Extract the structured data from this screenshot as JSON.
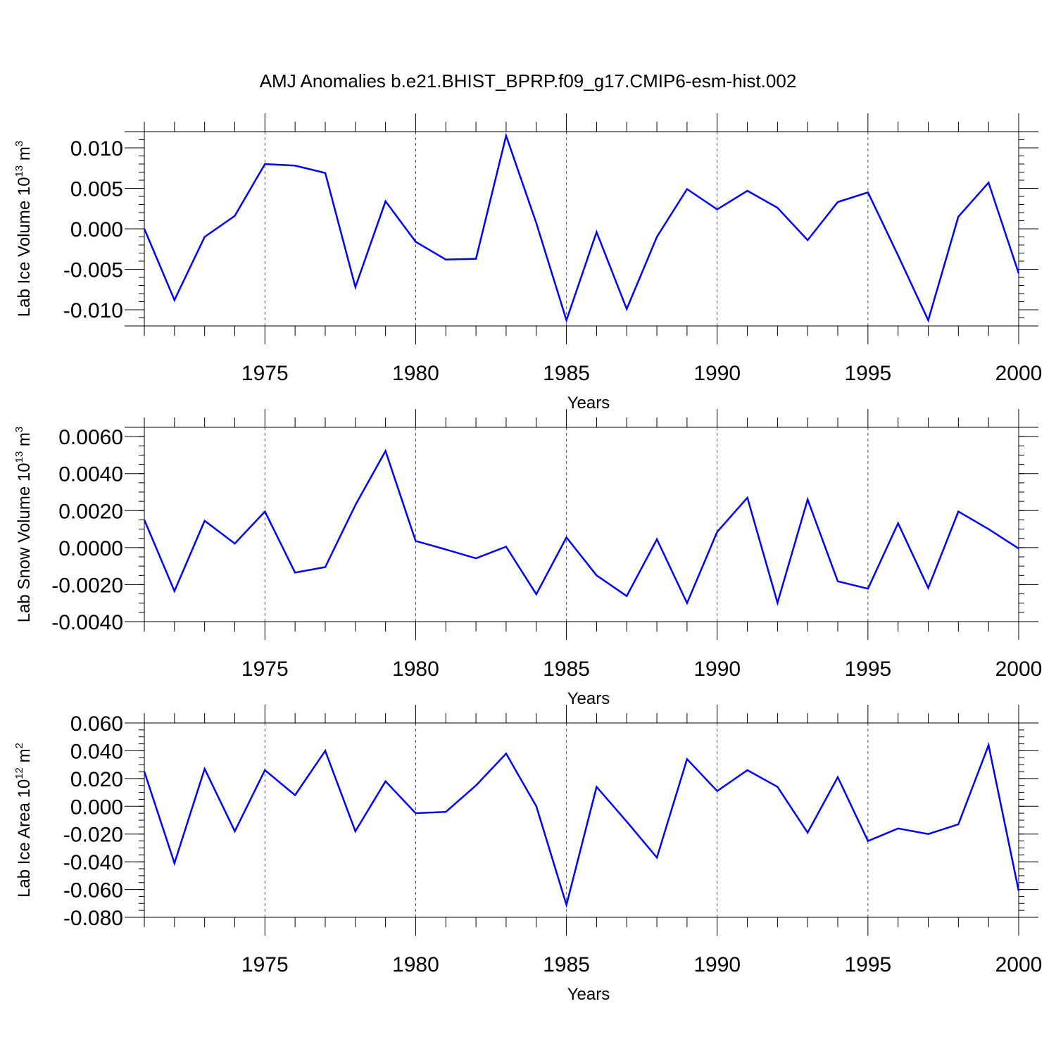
{
  "title": "AMJ Anomalies b.e21.BHIST_BPRP.f09_g17.CMIP6-esm-hist.002",
  "line_color": "#0000ff",
  "chart_data": [
    {
      "type": "line",
      "title": "AMJ Anomalies b.e21.BHIST_BPRP.f09_g17.CMIP6-esm-hist.002",
      "xlabel": "Years",
      "ylabel_main": "Lab Ice Volume 10",
      "ylabel_exp": "13",
      "ylabel_unit": " m",
      "ylabel_pow": "3",
      "xlim": [
        1971,
        2000
      ],
      "ylim": [
        -0.012,
        0.012
      ],
      "y_ticks": [
        -0.01,
        -0.005,
        0.0,
        0.005,
        0.01
      ],
      "y_tick_labels": [
        "-0.010",
        "-0.005",
        "0.000",
        "0.005",
        "0.010"
      ],
      "y_minor_step": 0.001,
      "x_ticks": [
        1975,
        1980,
        1985,
        1990,
        1995,
        2000
      ],
      "x_tick_labels": [
        "1975",
        "1980",
        "1985",
        "1990",
        "1995",
        "2000"
      ],
      "x": [
        1971,
        1972,
        1973,
        1974,
        1975,
        1976,
        1977,
        1978,
        1979,
        1980,
        1981,
        1982,
        1983,
        1984,
        1985,
        1986,
        1987,
        1988,
        1989,
        1990,
        1991,
        1992,
        1993,
        1994,
        1995,
        1996,
        1997,
        1998,
        1999,
        2000
      ],
      "series": [
        {
          "name": "Lab Ice Volume",
          "values": [
            0.0,
            -0.0088,
            -0.001,
            0.0016,
            0.008,
            0.0078,
            0.0069,
            -0.0072,
            0.0034,
            -0.0016,
            -0.0038,
            -0.0037,
            0.0115,
            0.0007,
            -0.0113,
            -0.0004,
            -0.0099,
            -0.001,
            0.0049,
            0.0024,
            0.0047,
            0.0026,
            -0.0014,
            0.0033,
            0.0045,
            -0.0033,
            -0.0113,
            0.0015,
            0.0057,
            -0.0055
          ]
        }
      ]
    },
    {
      "type": "line",
      "xlabel": "Years",
      "ylabel_main": "Lab Snow Volume 10",
      "ylabel_exp": "13",
      "ylabel_unit": " m",
      "ylabel_pow": "3",
      "xlim": [
        1971,
        2000
      ],
      "ylim": [
        -0.004,
        0.0065
      ],
      "y_ticks": [
        -0.004,
        -0.002,
        0.0,
        0.002,
        0.004,
        0.006
      ],
      "y_tick_labels": [
        "-0.0040",
        "-0.0020",
        "0.0000",
        "0.0020",
        "0.0040",
        "0.0060"
      ],
      "y_minor_step": 0.0005,
      "x_ticks": [
        1975,
        1980,
        1985,
        1990,
        1995,
        2000
      ],
      "x_tick_labels": [
        "1975",
        "1980",
        "1985",
        "1990",
        "1995",
        "2000"
      ],
      "x": [
        1971,
        1972,
        1973,
        1974,
        1975,
        1976,
        1977,
        1978,
        1979,
        1980,
        1981,
        1982,
        1983,
        1984,
        1985,
        1986,
        1987,
        1988,
        1989,
        1990,
        1991,
        1992,
        1993,
        1994,
        1995,
        1996,
        1997,
        1998,
        1999,
        2000
      ],
      "series": [
        {
          "name": "Lab Snow Volume",
          "values": [
            0.0015,
            -0.00235,
            0.00145,
            0.00022,
            0.00195,
            -0.00135,
            -0.00105,
            0.0023,
            0.00522,
            0.00036,
            -0.0001,
            -0.00058,
            5e-05,
            -0.00252,
            0.00055,
            -0.0015,
            -0.00262,
            0.00045,
            -0.003,
            0.00085,
            0.0027,
            -0.00298,
            0.0026,
            -0.00182,
            -0.00222,
            0.00132,
            -0.00218,
            0.00195,
            0.001,
            -5e-05
          ]
        }
      ]
    },
    {
      "type": "line",
      "xlabel": "Years",
      "ylabel_main": "Lab Ice Area 10",
      "ylabel_exp": "12",
      "ylabel_unit": " m",
      "ylabel_pow": "2",
      "xlim": [
        1971,
        2000
      ],
      "ylim": [
        -0.08,
        0.06
      ],
      "y_ticks": [
        -0.08,
        -0.06,
        -0.04,
        -0.02,
        0.0,
        0.02,
        0.04,
        0.06
      ],
      "y_tick_labels": [
        "-0.080",
        "-0.060",
        "-0.040",
        "-0.020",
        "0.000",
        "0.020",
        "0.040",
        "0.060"
      ],
      "y_minor_step": 0.005,
      "x_ticks": [
        1975,
        1980,
        1985,
        1990,
        1995,
        2000
      ],
      "x_tick_labels": [
        "1975",
        "1980",
        "1985",
        "1990",
        "1995",
        "2000"
      ],
      "x": [
        1971,
        1972,
        1973,
        1974,
        1975,
        1976,
        1977,
        1978,
        1979,
        1980,
        1981,
        1982,
        1983,
        1984,
        1985,
        1986,
        1987,
        1988,
        1989,
        1990,
        1991,
        1992,
        1993,
        1994,
        1995,
        1996,
        1997,
        1998,
        1999,
        2000
      ],
      "series": [
        {
          "name": "Lab Ice Area",
          "values": [
            0.025,
            -0.041,
            0.027,
            -0.018,
            0.026,
            0.008,
            0.04,
            -0.018,
            0.018,
            -0.005,
            -0.004,
            0.015,
            0.038,
            0.0,
            -0.071,
            0.014,
            -0.011,
            -0.037,
            0.034,
            0.011,
            0.026,
            0.014,
            -0.019,
            0.021,
            -0.025,
            -0.016,
            -0.02,
            -0.013,
            0.044,
            -0.061
          ]
        }
      ]
    }
  ]
}
